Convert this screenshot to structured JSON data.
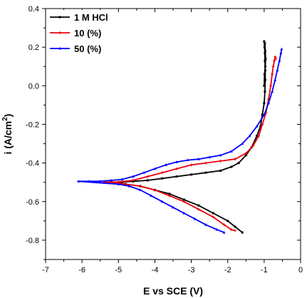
{
  "chart_data": {
    "type": "line",
    "title": "",
    "xlabel": "E vs SCE (V)",
    "ylabel_main": "i (A/cm",
    "ylabel_sup": "2",
    "ylabel_close": ")",
    "xlim": [
      -7,
      0
    ],
    "ylim": [
      -0.9,
      0.4
    ],
    "xticks": [
      -7,
      -6,
      -5,
      -4,
      -3,
      -2,
      -1,
      0
    ],
    "xtick_labels": [
      "-7",
      "-6",
      "-5",
      "-4",
      "-3",
      "-2",
      "-1",
      "0"
    ],
    "yticks": [
      -0.8,
      -0.6,
      -0.4,
      -0.2,
      0.0,
      0.2,
      0.4
    ],
    "ytick_labels": [
      "-0.8",
      "-0.6",
      "-0.4",
      "-0.2",
      "0.0",
      "0.2",
      "0.4"
    ],
    "grid": false,
    "legend_position": "top-left",
    "series": [
      {
        "name": "1 M HCl",
        "color": "#000000",
        "marker": "square",
        "points": [
          [
            -5.0,
            -0.5
          ],
          [
            -4.6,
            -0.495
          ],
          [
            -4.2,
            -0.49
          ],
          [
            -3.8,
            -0.48
          ],
          [
            -3.4,
            -0.47
          ],
          [
            -3.0,
            -0.46
          ],
          [
            -2.6,
            -0.45
          ],
          [
            -2.2,
            -0.44
          ],
          [
            -1.9,
            -0.42
          ],
          [
            -1.7,
            -0.4
          ],
          [
            -1.5,
            -0.36
          ],
          [
            -1.35,
            -0.32
          ],
          [
            -1.2,
            -0.26
          ],
          [
            -1.1,
            -0.21
          ],
          [
            -1.05,
            -0.15
          ],
          [
            -1.0,
            -0.09
          ],
          [
            -0.98,
            -0.03
          ],
          [
            -0.97,
            0.03
          ],
          [
            -0.97,
            0.08
          ],
          [
            -0.98,
            0.13
          ],
          [
            -0.98,
            0.17
          ],
          [
            -0.99,
            0.2
          ],
          [
            -1.0,
            0.23
          ],
          [
            -0.98,
            0.22
          ],
          [
            -0.97,
            0.18
          ],
          [
            -0.96,
            0.14
          ],
          [
            -0.97,
            0.1
          ],
          [
            -0.99,
            0.06
          ],
          [
            -1.0,
            0.0
          ],
          [
            -4.8,
            -0.51
          ],
          [
            -4.4,
            -0.52
          ],
          [
            -4.0,
            -0.54
          ],
          [
            -3.6,
            -0.56
          ],
          [
            -3.2,
            -0.59
          ],
          [
            -2.8,
            -0.62
          ],
          [
            -2.4,
            -0.66
          ],
          [
            -2.0,
            -0.7
          ],
          [
            -1.8,
            -0.73
          ],
          [
            -1.6,
            -0.76
          ]
        ]
      },
      {
        "name": "10 (%)",
        "color": "#e8000b",
        "marker": "plus",
        "points": [
          [
            -5.4,
            -0.5
          ],
          [
            -5.0,
            -0.498
          ],
          [
            -4.6,
            -0.49
          ],
          [
            -4.2,
            -0.47
          ],
          [
            -3.8,
            -0.45
          ],
          [
            -3.4,
            -0.43
          ],
          [
            -3.0,
            -0.41
          ],
          [
            -2.6,
            -0.4
          ],
          [
            -2.2,
            -0.39
          ],
          [
            -1.8,
            -0.38
          ],
          [
            -1.5,
            -0.35
          ],
          [
            -1.3,
            -0.31
          ],
          [
            -1.15,
            -0.26
          ],
          [
            -1.05,
            -0.2
          ],
          [
            -0.95,
            -0.14
          ],
          [
            -0.88,
            -0.07
          ],
          [
            -0.82,
            0.0
          ],
          [
            -0.78,
            0.06
          ],
          [
            -0.75,
            0.1
          ],
          [
            -0.72,
            0.13
          ],
          [
            -0.7,
            0.15
          ],
          [
            -0.68,
            0.14
          ],
          [
            -5.2,
            -0.5
          ],
          [
            -4.8,
            -0.51
          ],
          [
            -4.4,
            -0.52
          ],
          [
            -4.0,
            -0.54
          ],
          [
            -3.6,
            -0.57
          ],
          [
            -3.2,
            -0.6
          ],
          [
            -2.8,
            -0.64
          ],
          [
            -2.4,
            -0.68
          ],
          [
            -2.1,
            -0.72
          ],
          [
            -1.9,
            -0.745
          ],
          [
            -1.8,
            -0.75
          ]
        ]
      },
      {
        "name": "50 (%)",
        "color": "#0000ff",
        "marker": "triangle",
        "points": [
          [
            -6.1,
            -0.495
          ],
          [
            -5.8,
            -0.495
          ],
          [
            -5.5,
            -0.495
          ],
          [
            -5.2,
            -0.49
          ],
          [
            -4.9,
            -0.485
          ],
          [
            -4.6,
            -0.47
          ],
          [
            -4.3,
            -0.45
          ],
          [
            -4.0,
            -0.43
          ],
          [
            -3.7,
            -0.41
          ],
          [
            -3.4,
            -0.395
          ],
          [
            -3.1,
            -0.385
          ],
          [
            -2.8,
            -0.38
          ],
          [
            -2.5,
            -0.37
          ],
          [
            -2.2,
            -0.36
          ],
          [
            -1.9,
            -0.34
          ],
          [
            -1.6,
            -0.3
          ],
          [
            -1.4,
            -0.26
          ],
          [
            -1.2,
            -0.21
          ],
          [
            -1.0,
            -0.15
          ],
          [
            -0.88,
            -0.09
          ],
          [
            -0.78,
            -0.03
          ],
          [
            -0.7,
            0.03
          ],
          [
            -0.64,
            0.08
          ],
          [
            -0.58,
            0.13
          ],
          [
            -0.54,
            0.17
          ],
          [
            -0.52,
            0.19
          ],
          [
            -5.0,
            -0.51
          ],
          [
            -4.7,
            -0.52
          ],
          [
            -4.4,
            -0.54
          ],
          [
            -4.1,
            -0.57
          ],
          [
            -3.8,
            -0.6
          ],
          [
            -3.5,
            -0.63
          ],
          [
            -3.2,
            -0.66
          ],
          [
            -2.9,
            -0.69
          ],
          [
            -2.6,
            -0.72
          ],
          [
            -2.3,
            -0.745
          ],
          [
            -2.1,
            -0.76
          ]
        ]
      }
    ]
  }
}
